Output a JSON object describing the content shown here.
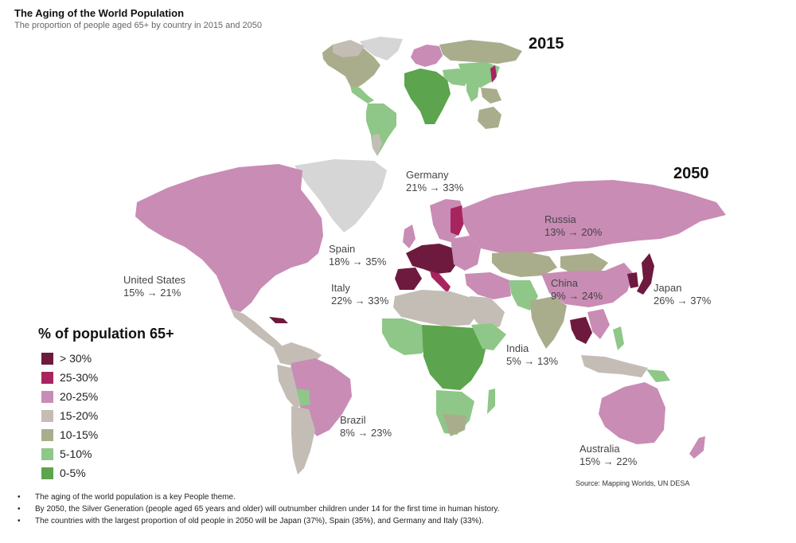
{
  "title": "The Aging of the World Population",
  "subtitle": "The proportion of people aged 65+ by country in 2015 and 2050",
  "year_small": "2015",
  "year_large": "2050",
  "legend": {
    "title": "% of population 65+",
    "items": [
      {
        "label": "> 30%",
        "color": "#6d1a3e"
      },
      {
        "label": "25-30%",
        "color": "#a8245f"
      },
      {
        "label": "20-25%",
        "color": "#c98cb5"
      },
      {
        "label": "15-20%",
        "color": "#c4bdb6"
      },
      {
        "label": "10-15%",
        "color": "#a9ad8b"
      },
      {
        "label": "5-10%",
        "color": "#8ec788"
      },
      {
        "label": "0-5%",
        "color": "#5ca44d"
      }
    ]
  },
  "countries": [
    {
      "name": "Germany",
      "values": "21% → 33%"
    },
    {
      "name": "Russia",
      "values": "13% → 20%"
    },
    {
      "name": "Spain",
      "values": "18% → 35%"
    },
    {
      "name": "United States",
      "values": "15% → 21%"
    },
    {
      "name": "Italy",
      "values": "22% → 33%"
    },
    {
      "name": "China",
      "values": "9% → 24%"
    },
    {
      "name": "Japan",
      "values": "26% → 37%"
    },
    {
      "name": "India",
      "values": "5% → 13%"
    },
    {
      "name": "Brazil",
      "values": "8% → 23%"
    },
    {
      "name": "Australia",
      "values": "15% → 22%"
    }
  ],
  "source": "Source: Mapping Worlds, UN DESA",
  "bullets": [
    "The aging of the world population is a key People theme.",
    "By 2050, the Silver Generation (people aged 65 years and older) will outnumber children under 14 for the first time in human history.",
    "The countries with the largest proportion of old people in 2050 will be Japan (37%), Spain (35%), and Germany and Italy (33%)."
  ]
}
